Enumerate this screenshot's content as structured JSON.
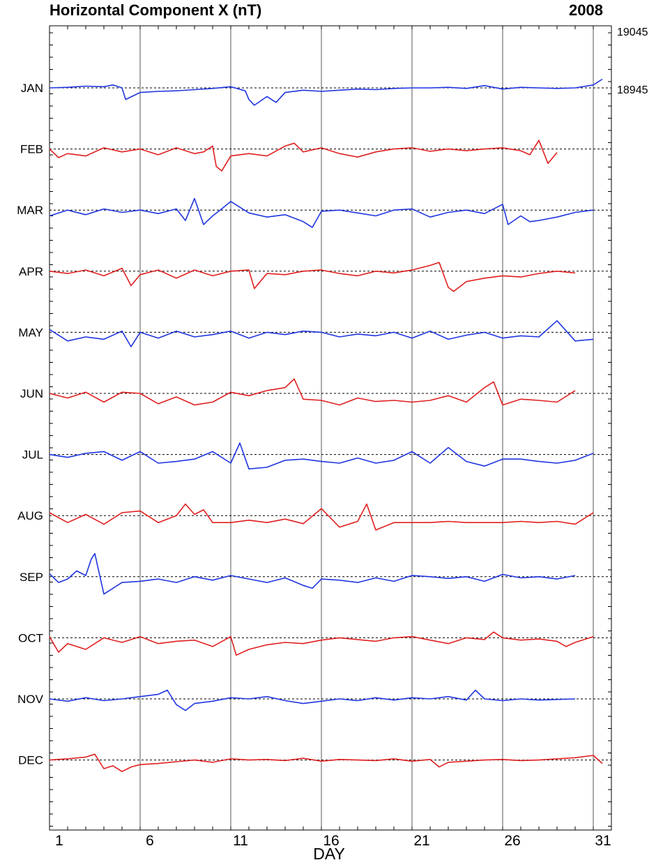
{
  "chart_data": {
    "type": "line",
    "title": "Horizontal Component X (nT)",
    "year": "2008",
    "xlabel": "DAY",
    "xlim": [
      1,
      32
    ],
    "x_ticks": [
      "1",
      "6",
      "11",
      "16",
      "21",
      "26",
      "31"
    ],
    "x_tick_values": [
      1,
      6,
      11,
      16,
      21,
      26,
      31
    ],
    "y_scale_labels": [
      "19045",
      "18945"
    ],
    "y_scale_values_nT": [
      19045,
      18945
    ],
    "baseline_nT": 18945,
    "offset_per_month_nT": 100,
    "grid": "vertical lines at day boundaries 6, 11, 16, 21, 26, 31; dashed baseline per month",
    "colors": {
      "blue": "#1f35e0",
      "red": "#e01f1f",
      "baseline": "#000000",
      "grid": "#555555"
    },
    "series": [
      {
        "name": "JAN",
        "days": 31,
        "color": "blue",
        "x": [
          1,
          2,
          3,
          4,
          4.5,
          5,
          5.2,
          6,
          7,
          8,
          9,
          10,
          11,
          11.8,
          12,
          12.3,
          13,
          13.5,
          14,
          15,
          16,
          17,
          18,
          19,
          20,
          21,
          22,
          23,
          24,
          25,
          26,
          27,
          28,
          29,
          30,
          31,
          31.5
        ],
        "y": [
          0,
          1,
          3,
          2,
          5,
          0,
          -20,
          -8,
          -6,
          -5,
          -3,
          -1,
          2,
          -5,
          -20,
          -30,
          -15,
          -25,
          -8,
          -4,
          -6,
          -4,
          -2,
          -3,
          -1,
          0,
          0,
          1,
          -1,
          4,
          -2,
          1,
          0,
          -1,
          0,
          5,
          15
        ]
      },
      {
        "name": "FEB",
        "days": 29,
        "color": "red",
        "x": [
          1,
          1.5,
          2,
          3,
          4,
          5,
          6,
          7,
          8,
          9,
          9.5,
          10,
          10.2,
          10.5,
          11,
          12,
          13,
          14,
          14.5,
          15,
          16,
          17,
          18,
          19,
          20,
          21,
          22,
          23,
          24,
          25,
          26,
          27,
          27.5,
          28,
          28.5,
          29
        ],
        "y": [
          0,
          -15,
          -8,
          -12,
          2,
          -5,
          0,
          -10,
          2,
          -8,
          -5,
          5,
          -30,
          -38,
          -12,
          -8,
          -12,
          5,
          10,
          -5,
          2,
          -8,
          -14,
          -5,
          0,
          2,
          -4,
          0,
          -3,
          0,
          2,
          -3,
          -10,
          15,
          -25,
          -6
        ]
      },
      {
        "name": "MAR",
        "days": 31,
        "color": "blue",
        "x": [
          1,
          2,
          3,
          4,
          5,
          6,
          7,
          8,
          8.5,
          9,
          9.5,
          10,
          10.5,
          11,
          12,
          13,
          14,
          15,
          15.5,
          16,
          17,
          18,
          19,
          20,
          21,
          22,
          23,
          24,
          25,
          26,
          26.3,
          27,
          27.5,
          28,
          29,
          30,
          31
        ],
        "y": [
          -10,
          0,
          -8,
          2,
          -4,
          0,
          -6,
          2,
          -18,
          20,
          -25,
          -10,
          2,
          15,
          -5,
          -12,
          -8,
          -20,
          -30,
          -2,
          0,
          -5,
          -10,
          0,
          2,
          -12,
          -4,
          0,
          -6,
          10,
          -25,
          -10,
          -20,
          -18,
          -12,
          -4,
          0
        ]
      },
      {
        "name": "APR",
        "days": 30,
        "color": "red",
        "x": [
          1,
          2,
          3,
          4,
          5,
          5.5,
          6,
          7,
          8,
          9,
          10,
          11,
          12,
          12.3,
          13,
          14,
          15,
          16,
          17,
          18,
          19,
          20,
          21,
          22,
          22.5,
          23,
          23.3,
          24,
          25,
          26,
          27,
          28,
          29,
          30
        ],
        "y": [
          0,
          -4,
          2,
          -8,
          5,
          -25,
          -6,
          2,
          -12,
          2,
          -8,
          0,
          2,
          -30,
          -4,
          -6,
          0,
          2,
          -4,
          -8,
          0,
          -3,
          2,
          10,
          15,
          -28,
          -35,
          -18,
          -12,
          -8,
          -10,
          -4,
          0,
          -3
        ]
      },
      {
        "name": "MAY",
        "days": 31,
        "color": "blue",
        "x": [
          1,
          2,
          3,
          4,
          5,
          5.5,
          6,
          7,
          8,
          9,
          10,
          11,
          12,
          13,
          14,
          15,
          16,
          17,
          18,
          19,
          20,
          21,
          22,
          23,
          24,
          25,
          26,
          27,
          28,
          29,
          30,
          31
        ],
        "y": [
          5,
          -15,
          -8,
          -12,
          2,
          -25,
          0,
          -10,
          2,
          -8,
          -4,
          2,
          -10,
          0,
          -4,
          2,
          0,
          -8,
          -3,
          -6,
          0,
          -10,
          2,
          -12,
          -5,
          0,
          -10,
          -6,
          -8,
          20,
          -15,
          -12
        ]
      },
      {
        "name": "JUN",
        "days": 30,
        "color": "red",
        "x": [
          1,
          2,
          3,
          4,
          5,
          6,
          7,
          8,
          9,
          10,
          11,
          12,
          13,
          14,
          14.5,
          15,
          16,
          17,
          18,
          19,
          20,
          21,
          22,
          23,
          24,
          25,
          25.5,
          26,
          27,
          28,
          29,
          30
        ],
        "y": [
          0,
          -8,
          2,
          -15,
          2,
          0,
          -18,
          -6,
          -20,
          -15,
          2,
          -4,
          5,
          10,
          25,
          -10,
          -12,
          -20,
          -8,
          -14,
          -12,
          -15,
          -12,
          -4,
          -15,
          10,
          20,
          -20,
          -10,
          -12,
          -15,
          5
        ]
      },
      {
        "name": "JUL",
        "days": 31,
        "color": "blue",
        "x": [
          1,
          2,
          3,
          4,
          5,
          6,
          7,
          8,
          9,
          10,
          11,
          11.5,
          12,
          13,
          14,
          15,
          16,
          17,
          18,
          19,
          20,
          21,
          22,
          23,
          24,
          25,
          26,
          27,
          28,
          29,
          30,
          31
        ],
        "y": [
          0,
          -5,
          2,
          5,
          -10,
          5,
          -15,
          -12,
          -8,
          5,
          -15,
          20,
          -25,
          -22,
          -10,
          -8,
          -12,
          -15,
          -6,
          -15,
          -10,
          5,
          -15,
          12,
          -12,
          -20,
          -8,
          -8,
          -12,
          -15,
          -10,
          2
        ]
      },
      {
        "name": "AUG",
        "days": 31,
        "color": "red",
        "x": [
          1,
          2,
          3,
          4,
          5,
          6,
          7,
          8,
          8.5,
          9,
          9.5,
          10,
          11,
          12,
          13,
          14,
          15,
          16,
          17,
          18,
          18.5,
          19,
          20,
          21,
          22,
          23,
          24,
          25,
          26,
          27,
          28,
          29,
          30,
          31
        ],
        "y": [
          5,
          -12,
          2,
          -15,
          5,
          8,
          -12,
          0,
          20,
          2,
          10,
          -12,
          -12,
          -8,
          -12,
          -6,
          -14,
          12,
          -20,
          -10,
          20,
          -25,
          -12,
          -12,
          -12,
          -10,
          -12,
          -12,
          -12,
          -10,
          -12,
          -10,
          -15,
          5
        ]
      },
      {
        "name": "SEP",
        "days": 30,
        "color": "blue",
        "x": [
          1,
          1.5,
          2,
          2.5,
          3,
          3.3,
          3.5,
          4,
          4.5,
          5,
          6,
          7,
          8,
          9,
          10,
          11,
          12,
          13,
          14,
          15,
          15.5,
          16,
          17,
          18,
          19,
          20,
          21,
          22,
          23,
          24,
          25,
          26,
          27,
          28,
          29,
          30
        ],
        "y": [
          5,
          -10,
          -4,
          10,
          2,
          30,
          40,
          -30,
          -20,
          -10,
          -8,
          -4,
          -10,
          0,
          -6,
          2,
          -4,
          -10,
          -2,
          -15,
          -20,
          -4,
          -6,
          -10,
          -2,
          -8,
          2,
          0,
          -3,
          0,
          -8,
          4,
          -2,
          0,
          -4,
          2
        ]
      },
      {
        "name": "OCT",
        "days": 31,
        "color": "red",
        "x": [
          1,
          1.5,
          2,
          3,
          4,
          5,
          6,
          7,
          8,
          9,
          10,
          11,
          11.3,
          12,
          13,
          14,
          15,
          16,
          17,
          18,
          19,
          20,
          21,
          22,
          23,
          24,
          25,
          25.5,
          26,
          27,
          28,
          29,
          29.5,
          30,
          31
        ],
        "y": [
          2,
          -25,
          -10,
          -20,
          0,
          -8,
          2,
          -10,
          -6,
          -4,
          -15,
          2,
          -30,
          -20,
          -12,
          -8,
          -10,
          -4,
          0,
          -3,
          -6,
          0,
          2,
          -4,
          -10,
          0,
          -3,
          10,
          0,
          -4,
          -2,
          -6,
          -15,
          -8,
          2
        ]
      },
      {
        "name": "NOV",
        "days": 30,
        "color": "blue",
        "x": [
          1,
          2,
          3,
          4,
          5,
          6,
          7,
          7.5,
          8,
          8.5,
          9,
          10,
          11,
          12,
          13,
          14,
          15,
          16,
          17,
          18,
          19,
          20,
          21,
          22,
          23,
          24,
          24.5,
          25,
          26,
          27,
          28,
          29,
          30
        ],
        "y": [
          0,
          -4,
          2,
          -3,
          0,
          4,
          8,
          15,
          -10,
          -20,
          -8,
          -4,
          2,
          0,
          4,
          -3,
          -8,
          -4,
          0,
          -3,
          2,
          -2,
          2,
          0,
          4,
          -2,
          15,
          0,
          -3,
          0,
          -2,
          -1,
          0
        ]
      },
      {
        "name": "DEC",
        "days": 31,
        "color": "red",
        "x": [
          1,
          2,
          3,
          3.5,
          4,
          4.5,
          5,
          5.5,
          6,
          7,
          8,
          9,
          10,
          11,
          12,
          13,
          14,
          15,
          16,
          17,
          18,
          19,
          20,
          21,
          22,
          22.5,
          23,
          24,
          25,
          26,
          27,
          28,
          29,
          30,
          31,
          31.5
        ],
        "y": [
          0,
          2,
          5,
          10,
          -15,
          -10,
          -20,
          -12,
          -8,
          -6,
          -3,
          0,
          -4,
          2,
          0,
          1,
          -1,
          3,
          -2,
          1,
          0,
          -1,
          2,
          -2,
          1,
          -12,
          -4,
          -2,
          0,
          1,
          -1,
          0,
          2,
          4,
          8,
          -6
        ]
      }
    ]
  }
}
